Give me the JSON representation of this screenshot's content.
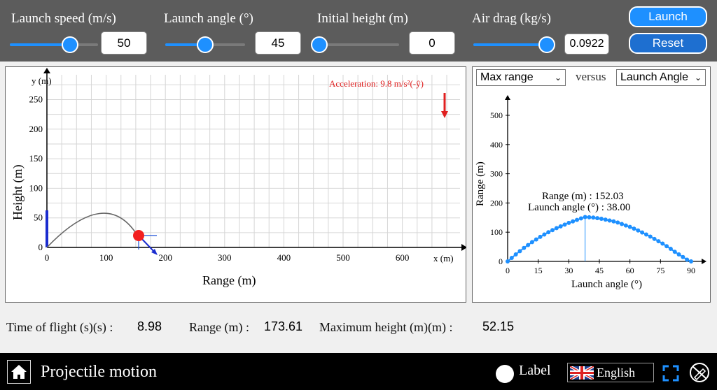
{
  "controls": {
    "speed": {
      "label": "Launch speed (m/s)",
      "value": "50",
      "fraction": 0.68
    },
    "angle": {
      "label": "Launch angle (°)",
      "value": "45",
      "fraction": 0.5
    },
    "height": {
      "label": "Initial height (m)",
      "value": "0",
      "fraction": 0.0
    },
    "drag": {
      "label": "Air drag (kg/s)",
      "value": "0.0922",
      "fraction": 0.92
    }
  },
  "buttons": {
    "launch": "Launch",
    "reset": "Reset"
  },
  "trajectory": {
    "acceleration_label": "Acceleration: 9.8 m/s²(-ŷ)",
    "x_axis_label": "Range (m)",
    "y_axis_label": "Height (m)",
    "x_end_label": "x (m)",
    "y_end_label": "y (m)",
    "x_ticks": [
      "0",
      "100",
      "200",
      "300",
      "400",
      "500",
      "600"
    ],
    "y_ticks": [
      "0",
      "50",
      "100",
      "150",
      "200",
      "250"
    ]
  },
  "graph": {
    "select_y": "Max range",
    "versus": "versus",
    "select_x": "Launch Angle",
    "y_label": "Range (m)",
    "x_label": "Launch angle (°)",
    "x_ticks": [
      "0",
      "15",
      "30",
      "45",
      "60",
      "75",
      "90"
    ],
    "y_ticks": [
      "0",
      "100",
      "200",
      "300",
      "400",
      "500"
    ],
    "annotation_range": "Range (m) : 152.03",
    "annotation_angle": "Launch angle (°) : 38.00"
  },
  "stats": {
    "flight_label": "Time of flight (s)(s) :",
    "flight_value": "8.98",
    "range_label": "Range (m) :",
    "range_value": "173.61",
    "maxh_label": "Maximum height (m)(m) :",
    "maxh_value": "52.15"
  },
  "footer": {
    "title": "Projectile motion",
    "label_toggle": "Label",
    "language": "English"
  },
  "chart_data": {
    "type": "scatter",
    "title": "",
    "xlabel": "Launch angle (°)",
    "ylabel": "Range (m)",
    "xlim": [
      0,
      90
    ],
    "ylim": [
      0,
      550
    ],
    "series": [
      {
        "x": [
          0,
          2,
          4,
          6,
          8,
          10,
          12,
          14,
          16,
          18,
          20,
          22,
          24,
          26,
          28,
          30,
          32,
          34,
          36,
          38,
          40,
          42,
          44,
          46,
          48,
          50,
          52,
          54,
          56,
          58,
          60,
          62,
          64,
          66,
          68,
          70,
          72,
          74,
          76,
          78,
          80,
          82,
          84,
          86,
          88,
          90
        ],
        "values": [
          0,
          12,
          24,
          35,
          46,
          56,
          66,
          75,
          84,
          92,
          100,
          107,
          114,
          120,
          126,
          132,
          137,
          142,
          147,
          152,
          151,
          150,
          148,
          146,
          143,
          140,
          137,
          133,
          128,
          123,
          118,
          112,
          106,
          99,
          92,
          85,
          77,
          69,
          61,
          52,
          43,
          33,
          24,
          15,
          6,
          0
        ]
      }
    ],
    "peak": {
      "x": 38.0,
      "y": 152.03
    },
    "accent_color": "#1e90ff"
  }
}
